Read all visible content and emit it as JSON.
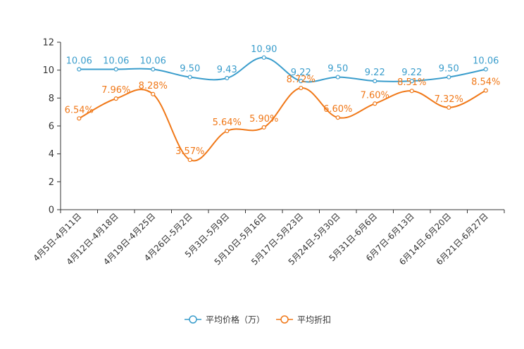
{
  "chart_data": {
    "type": "line",
    "categories": [
      "4月5日-4月11日",
      "4月12日-4月18日",
      "4月19日-4月25日",
      "4月26日-5月2日",
      "5月3日-5月9日",
      "5月10日-5月16日",
      "5月17日-5月23日",
      "5月24日-5月30日",
      "5月31日-6月6日",
      "6月7日-6月13日",
      "6月14日-6月20日",
      "6月21日-6月27日"
    ],
    "series": [
      {
        "name": "平均价格（万）",
        "color": "#3a9dcc",
        "values": [
          10.06,
          10.06,
          10.06,
          9.5,
          9.43,
          10.9,
          9.22,
          9.5,
          9.22,
          9.22,
          9.5,
          10.06
        ],
        "labels": [
          "10.06",
          "10.06",
          "10.06",
          "9.50",
          "9.43",
          "10.90",
          "9.22",
          "9.50",
          "9.22",
          "9.22",
          "9.50",
          "10.06"
        ]
      },
      {
        "name": "平均折扣",
        "color": "#f07818",
        "values": [
          6.54,
          7.96,
          8.28,
          3.57,
          5.64,
          5.9,
          8.72,
          6.6,
          7.6,
          8.51,
          7.32,
          8.54
        ],
        "labels": [
          "6.54%",
          "7.96%",
          "8.28%",
          "3.57%",
          "5.64%",
          "5.90%",
          "8.72%",
          "6.60%",
          "7.60%",
          "8.51%",
          "7.32%",
          "8.54%"
        ]
      }
    ],
    "ylim": [
      0,
      12
    ],
    "yticks": [
      0,
      2,
      4,
      6,
      8,
      10,
      12
    ],
    "title": "",
    "xlabel": "",
    "ylabel": "",
    "legend_position": "bottom-center"
  }
}
